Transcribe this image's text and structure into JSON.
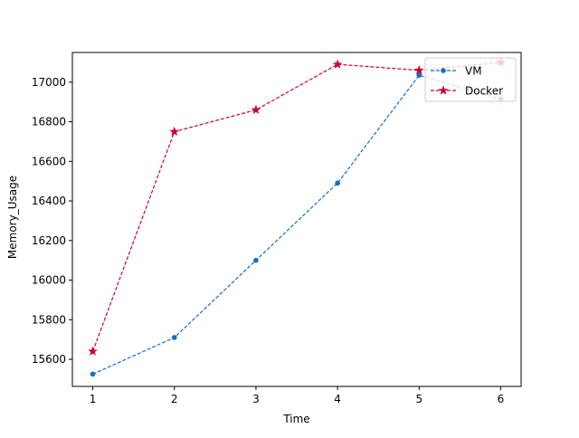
{
  "chart_data": {
    "type": "line",
    "title": "",
    "xlabel": "Time",
    "ylabel": "Memory_Usage",
    "x": [
      1,
      2,
      3,
      4,
      5,
      6
    ],
    "xlim": [
      0.75,
      6.25
    ],
    "ylim": [
      15463,
      17150
    ],
    "xticks": [
      1,
      2,
      3,
      4,
      5,
      6
    ],
    "yticks": [
      15600,
      15800,
      16000,
      16200,
      16400,
      16600,
      16800,
      17000
    ],
    "grid": false,
    "legend_position": "upper right",
    "series": [
      {
        "name": "VM",
        "values": [
          15525,
          15710,
          16100,
          16490,
          17035,
          16915
        ],
        "color": "#0f6fc6",
        "marker": "dot",
        "line_style": "dashed"
      },
      {
        "name": "Docker",
        "values": [
          15640,
          16750,
          16860,
          17090,
          17060,
          17100
        ],
        "color": "#cc0033",
        "marker": "star",
        "line_style": "dashed"
      }
    ]
  }
}
